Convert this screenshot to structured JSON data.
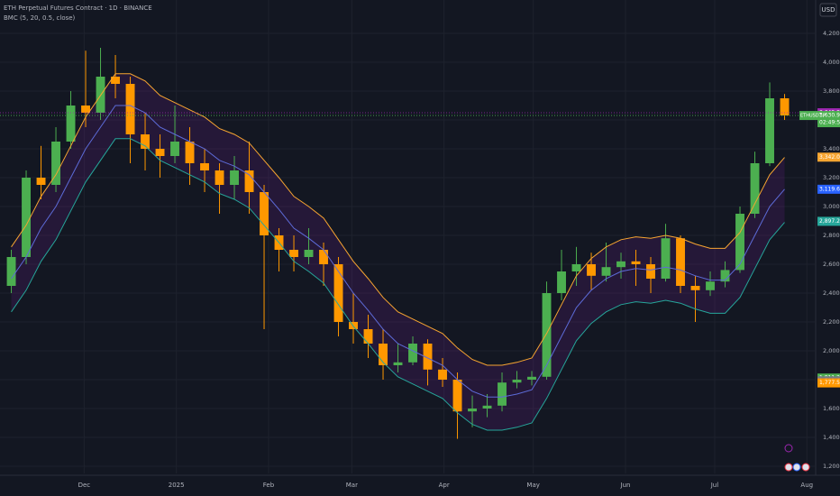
{
  "chart_data": {
    "type": "candlestick",
    "title": "ETH Perpetual Futures Contract · 1D · BINANCE",
    "subtitle": "BMC (5, 20, 0.5, close)",
    "currency": "USD",
    "up_color": "#4caf50",
    "down_color": "#ff9800",
    "grid": true,
    "open": [
      2450,
      2650,
      3200,
      3150,
      3450,
      3700,
      3650,
      3900,
      3850,
      3500,
      3400,
      3350,
      3450,
      3300,
      3250,
      3150,
      3250,
      3100,
      2800,
      2700,
      2650,
      2700,
      2600,
      2200,
      2150,
      2050,
      1900,
      1920,
      2050,
      1870,
      1800,
      1580,
      1600,
      1620,
      1780,
      1800,
      1820,
      2400,
      2550,
      2600,
      2520,
      2580,
      2620,
      2600,
      2500,
      2780,
      2450,
      2420,
      2480,
      2560,
      2950,
      3300,
      3750
    ],
    "high": [
      2700,
      3250,
      3420,
      3550,
      3800,
      4080,
      4100,
      4050,
      3900,
      3650,
      3500,
      3700,
      3550,
      3400,
      3300,
      3350,
      3450,
      3150,
      2850,
      2800,
      2850,
      2750,
      2650,
      2400,
      2250,
      2150,
      2050,
      2100,
      2080,
      1950,
      1850,
      1690,
      1700,
      1850,
      1860,
      1860,
      2480,
      2700,
      2720,
      2680,
      2750,
      2680,
      2700,
      2650,
      2880,
      2800,
      2520,
      2550,
      2620,
      3000,
      3380,
      3860,
      3780
    ],
    "low": [
      2400,
      2600,
      3050,
      3100,
      3400,
      3550,
      3600,
      3750,
      3300,
      3250,
      3200,
      3300,
      3150,
      3100,
      2950,
      3050,
      2950,
      2150,
      2550,
      2550,
      2600,
      2450,
      2100,
      2050,
      1950,
      1800,
      1850,
      1900,
      1760,
      1750,
      1390,
      1470,
      1540,
      1580,
      1740,
      1760,
      1800,
      2350,
      2450,
      2420,
      2480,
      2500,
      2450,
      2400,
      2480,
      2400,
      2200,
      2380,
      2440,
      2540,
      2920,
      3280,
      3600
    ],
    "close": [
      2650,
      3200,
      3150,
      3450,
      3700,
      3650,
      3900,
      3850,
      3500,
      3400,
      3350,
      3450,
      3300,
      3250,
      3150,
      3250,
      3100,
      2800,
      2700,
      2650,
      2700,
      2600,
      2200,
      2150,
      2050,
      1900,
      1920,
      2050,
      1870,
      1800,
      1580,
      1600,
      1620,
      1780,
      1800,
      1820,
      2400,
      2550,
      2600,
      2520,
      2580,
      2620,
      2600,
      2500,
      2780,
      2450,
      2420,
      2480,
      2560,
      2950,
      3300,
      3750,
      3630.93
    ],
    "series": [
      {
        "color": "#f7a531",
        "values": [
          2720,
          2870,
          3070,
          3220,
          3420,
          3620,
          3770,
          3920,
          3920,
          3870,
          3770,
          3720,
          3670,
          3620,
          3540,
          3500,
          3440,
          3320,
          3200,
          3070,
          3000,
          2920,
          2770,
          2620,
          2500,
          2370,
          2270,
          2220,
          2170,
          2120,
          2020,
          1940,
          1900,
          1900,
          1920,
          1950,
          2120,
          2320,
          2520,
          2640,
          2720,
          2770,
          2790,
          2780,
          2800,
          2780,
          2740,
          2710,
          2710,
          2820,
          3020,
          3220,
          3340
        ]
      },
      {
        "color": "#5d6bd8",
        "values": [
          2500,
          2650,
          2850,
          3000,
          3200,
          3400,
          3550,
          3700,
          3700,
          3650,
          3550,
          3500,
          3450,
          3400,
          3320,
          3280,
          3220,
          3100,
          2980,
          2850,
          2780,
          2700,
          2550,
          2400,
          2280,
          2150,
          2050,
          2000,
          1950,
          1900,
          1800,
          1720,
          1680,
          1680,
          1700,
          1730,
          1900,
          2100,
          2300,
          2420,
          2500,
          2550,
          2570,
          2560,
          2580,
          2560,
          2520,
          2490,
          2490,
          2600,
          2800,
          3000,
          3120
        ]
      },
      {
        "color": "#26a69a",
        "values": [
          2270,
          2420,
          2620,
          2770,
          2970,
          3170,
          3320,
          3470,
          3470,
          3420,
          3320,
          3270,
          3220,
          3170,
          3090,
          3050,
          2990,
          2870,
          2750,
          2620,
          2550,
          2470,
          2320,
          2170,
          2050,
          1920,
          1820,
          1770,
          1720,
          1670,
          1570,
          1490,
          1450,
          1450,
          1470,
          1500,
          1670,
          1870,
          2070,
          2190,
          2270,
          2320,
          2340,
          2330,
          2350,
          2330,
          2290,
          2260,
          2260,
          2370,
          2570,
          2770,
          2890
        ]
      }
    ],
    "xlim": [
      -0.76,
      54.09
    ],
    "xticks": [
      {
        "value": 4.9,
        "label": "Dec"
      },
      {
        "value": 11.1,
        "label": "2025"
      },
      {
        "value": 17.3,
        "label": "Feb"
      },
      {
        "value": 22.9,
        "label": "Mar"
      },
      {
        "value": 29.1,
        "label": "Apr"
      },
      {
        "value": 35.1,
        "label": "May"
      },
      {
        "value": 41.3,
        "label": "Jun"
      },
      {
        "value": 47.3,
        "label": "Jul"
      },
      {
        "value": 53.5,
        "label": "Aug"
      }
    ],
    "ylim": [
      1150,
      4431.25
    ],
    "yticks": [
      {
        "value": 1200,
        "label": "1,200.00"
      },
      {
        "value": 1400,
        "label": "1,400.00"
      },
      {
        "value": 1600,
        "label": "1,600.00"
      },
      {
        "value": 1800,
        "label": "1,800.00"
      },
      {
        "value": 2000,
        "label": "2,000.00"
      },
      {
        "value": 2200,
        "label": "2,200.00"
      },
      {
        "value": 2400,
        "label": "2,400.00"
      },
      {
        "value": 2600,
        "label": "2,600.00"
      },
      {
        "value": 2800,
        "label": "2,800.00"
      },
      {
        "value": 3000,
        "label": "3,000.00"
      },
      {
        "value": 3200,
        "label": "3,200.00"
      },
      {
        "value": 3400,
        "label": "3,400.00"
      },
      {
        "value": 3600,
        "label": "3,600.00"
      },
      {
        "value": 3800,
        "label": "3,800.00"
      },
      {
        "value": 4000,
        "label": "4,000.00"
      },
      {
        "value": 4200,
        "label": "4,200.00"
      }
    ],
    "price_labels": [
      {
        "value": 3649.84,
        "label": "3,649.84",
        "color": "#9c27b0"
      },
      {
        "value": 3630.93,
        "label": "3,630.93",
        "color": "#4caf50",
        "symbol": "ETHUSDT.P",
        "countdown": "02:49:52"
      },
      {
        "value": 3342.05,
        "label": "3,342.05",
        "color": "#f7a531"
      },
      {
        "value": 3119.66,
        "label": "3,119.66",
        "color": "#2962ff"
      },
      {
        "value": 2897.27,
        "label": "2,897.27",
        "color": "#26a69a"
      },
      {
        "value": 1811.24,
        "label": "1,811.24",
        "color": "#4caf50"
      },
      {
        "value": 1791.69,
        "label": "1,791.69",
        "color": "#787b86"
      },
      {
        "value": 1777.5,
        "label": "1,777.50",
        "color": "#ff9800"
      }
    ]
  }
}
